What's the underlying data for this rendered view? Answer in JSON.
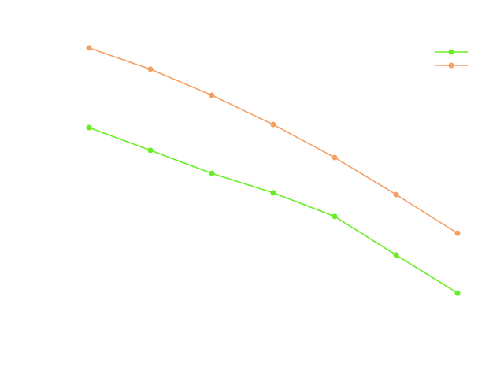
{
  "chart_data": {
    "type": "line",
    "title": "",
    "xlabel": "",
    "ylabel": "",
    "x": [
      1,
      2,
      3,
      4,
      5,
      6,
      7
    ],
    "xlim": [
      1,
      7
    ],
    "ylim": [
      0,
      100
    ],
    "grid": false,
    "legend_position": "top-right",
    "series": [
      {
        "name": "",
        "color": "#66ee22",
        "values": [
          67.9,
          60.3,
          52.6,
          46.1,
          38.2,
          25.3,
          12.6
        ]
      },
      {
        "name": "",
        "color": "#f4a064",
        "values": [
          94.5,
          87.4,
          78.7,
          68.9,
          57.9,
          45.5,
          32.6
        ]
      }
    ]
  }
}
